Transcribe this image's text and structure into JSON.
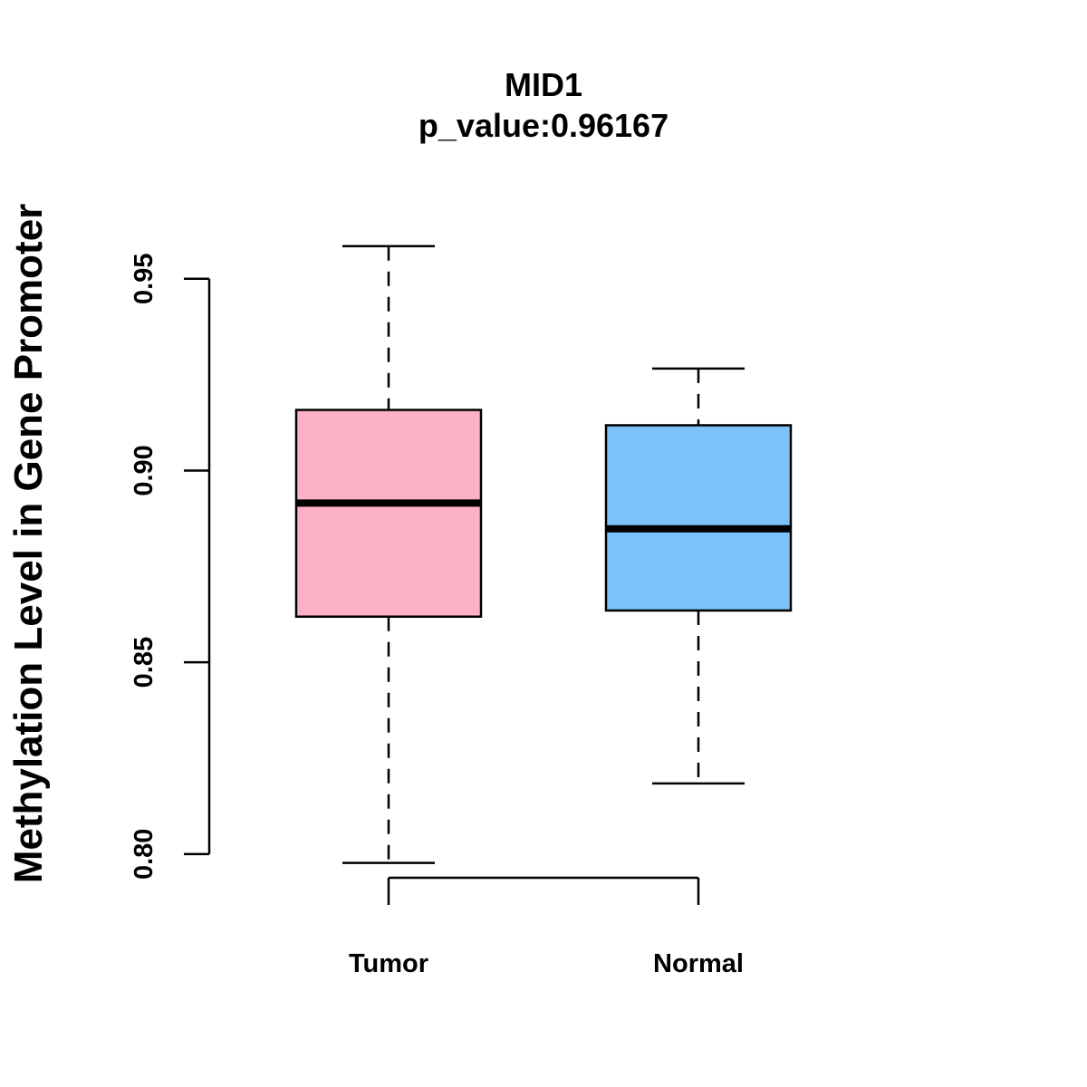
{
  "chart_data": {
    "type": "box",
    "title": "MID1",
    "subtitle": "p_value:0.96167",
    "ylabel": "Methylation Level in Gene Promoter",
    "xlabel": "",
    "ylim": [
      0.7865,
      0.966
    ],
    "yticks": [
      0.8,
      0.85,
      0.9,
      0.95
    ],
    "ytick_labels": [
      "0.80",
      "0.85",
      "0.90",
      "0.95"
    ],
    "categories": [
      "Tumor",
      "Normal"
    ],
    "series": [
      {
        "category": "Tumor",
        "whisker_low": 0.7977,
        "q1": 0.8619,
        "median": 0.8915,
        "q3": 0.9158,
        "whisker_high": 0.9585,
        "color": "#FCB2C4"
      },
      {
        "category": "Normal",
        "whisker_low": 0.8184,
        "q1": 0.8635,
        "median": 0.8848,
        "q3": 0.9118,
        "whisker_high": 0.9266,
        "color": "#7AC2F9"
      }
    ],
    "grid": false,
    "legend": "none"
  }
}
